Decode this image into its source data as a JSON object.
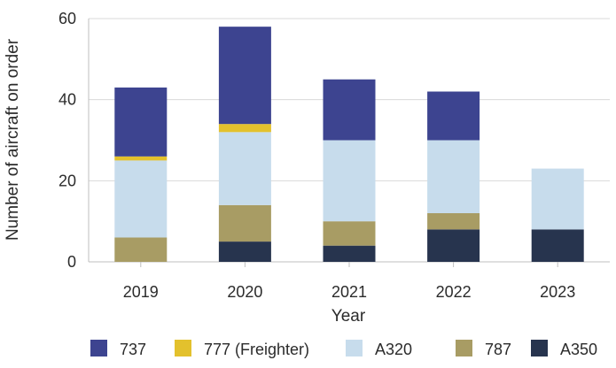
{
  "chart_data": {
    "type": "bar",
    "stacked": true,
    "categories": [
      "2019",
      "2020",
      "2021",
      "2022",
      "2023"
    ],
    "series": [
      {
        "name": "A350",
        "color": "#27344e",
        "values": [
          0,
          5,
          4,
          8,
          8
        ]
      },
      {
        "name": "787",
        "color": "#a89c64",
        "values": [
          6,
          9,
          6,
          4,
          0
        ]
      },
      {
        "name": "A320",
        "color": "#c7dcec",
        "values": [
          19,
          18,
          20,
          18,
          15
        ]
      },
      {
        "name": "777 (Freighter)",
        "color": "#e3c12d",
        "values": [
          1,
          2,
          0,
          0,
          0
        ]
      },
      {
        "name": "737",
        "color": "#3d4490",
        "values": [
          17,
          24,
          15,
          12,
          0
        ]
      }
    ],
    "legend_order": [
      "737",
      "777 (Freighter)",
      "A320",
      "787",
      "A350"
    ],
    "xlabel": "Year",
    "ylabel": "Number of aircraft on order",
    "ylim": [
      0,
      60
    ],
    "yticks": [
      0,
      20,
      40,
      60
    ],
    "grid": "horizontal",
    "legend_position": "bottom"
  }
}
